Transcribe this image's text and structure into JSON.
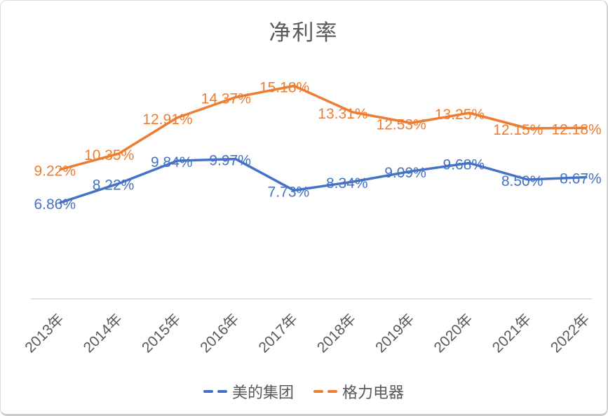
{
  "chart_data": {
    "type": "line",
    "title": "净利率",
    "categories": [
      "2013年",
      "2014年",
      "2015年",
      "2016年",
      "2017年",
      "2018年",
      "2019年",
      "2020年",
      "2021年",
      "2022年"
    ],
    "series": [
      {
        "name": "美的集团",
        "color": "#4472C4",
        "values": [
          6.86,
          8.22,
          9.84,
          9.97,
          7.73,
          8.34,
          9.09,
          9.68,
          8.5,
          8.67
        ],
        "labels": [
          "6.86%",
          "8.22%",
          "9.84%",
          "9.97%",
          "7.73%",
          "8.34%",
          "9.09%",
          "9.68%",
          "8.50%",
          "8.67%"
        ]
      },
      {
        "name": "格力电器",
        "color": "#ED7D31",
        "values": [
          9.22,
          10.35,
          12.91,
          14.37,
          15.18,
          13.31,
          12.53,
          13.25,
          12.15,
          12.18
        ],
        "labels": [
          "9.22%",
          "10.35%",
          "12.91%",
          "14.37%",
          "15.18%",
          "13.31%",
          "12.53%",
          "13.25%",
          "12.15%",
          "12.18%"
        ]
      }
    ],
    "ylim": [
      0,
      16
    ],
    "grid": false,
    "data_labels": true,
    "legend_position": "bottom",
    "axis_line_color": "#D9D9D9",
    "text_color": "#595959"
  }
}
